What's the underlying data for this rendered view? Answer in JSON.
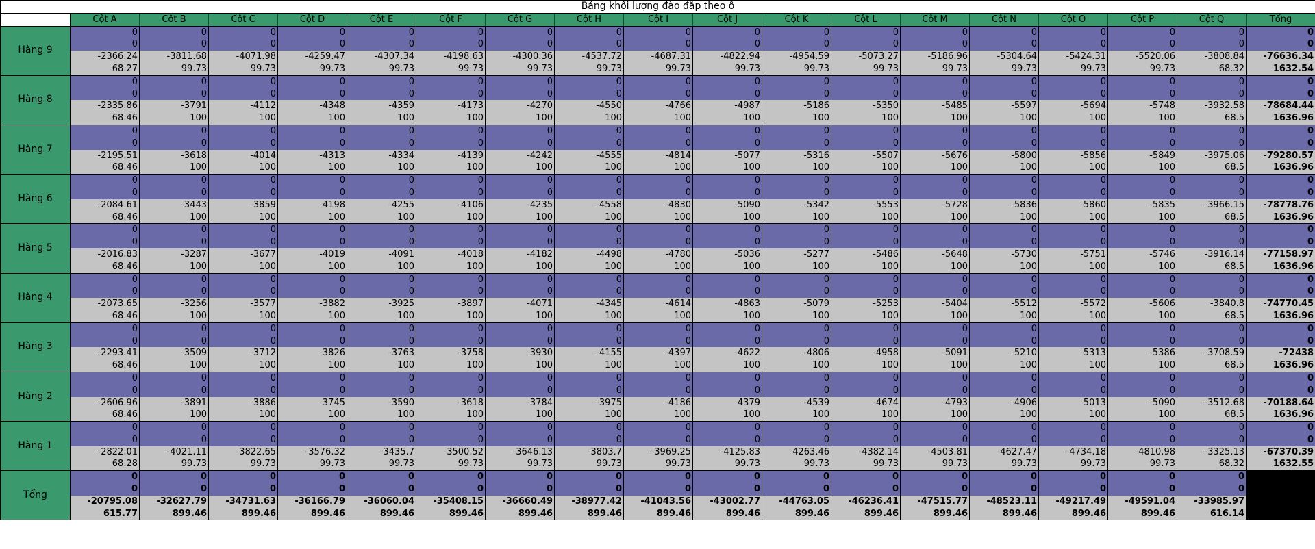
{
  "title": "Bảng khối lượng đào đắp theo ô",
  "columns": [
    "Cột A",
    "Cột B",
    "Cột C",
    "Cột D",
    "Cột E",
    "Cột F",
    "Cột G",
    "Cột H",
    "Cột I",
    "Cột J",
    "Cột K",
    "Cột L",
    "Cột M",
    "Cột N",
    "Cột O",
    "Cột P",
    "Cột Q"
  ],
  "total_label": "Tổng",
  "rows": [
    {
      "label": "Hàng 9",
      "fill1": [
        "0",
        "0",
        "0",
        "0",
        "0",
        "0",
        "0",
        "0",
        "0",
        "0",
        "0",
        "0",
        "0",
        "0",
        "0",
        "0",
        "0",
        "0"
      ],
      "fill2": [
        "0",
        "0",
        "0",
        "0",
        "0",
        "0",
        "0",
        "0",
        "0",
        "0",
        "0",
        "0",
        "0",
        "0",
        "0",
        "0",
        "0",
        "0"
      ],
      "cut": [
        "-2366.24",
        "-3811.68",
        "-4071.98",
        "-4259.47",
        "-4307.34",
        "-4198.63",
        "-4300.36",
        "-4537.72",
        "-4687.31",
        "-4822.94",
        "-4954.59",
        "-5073.27",
        "-5186.96",
        "-5304.64",
        "-5424.31",
        "-5520.06",
        "-3808.84",
        "-76636.34"
      ],
      "area": [
        "68.27",
        "99.73",
        "99.73",
        "99.73",
        "99.73",
        "99.73",
        "99.73",
        "99.73",
        "99.73",
        "99.73",
        "99.73",
        "99.73",
        "99.73",
        "99.73",
        "99.73",
        "99.73",
        "68.32",
        "1632.54"
      ]
    },
    {
      "label": "Hàng 8",
      "fill1": [
        "0",
        "0",
        "0",
        "0",
        "0",
        "0",
        "0",
        "0",
        "0",
        "0",
        "0",
        "0",
        "0",
        "0",
        "0",
        "0",
        "0",
        "0"
      ],
      "fill2": [
        "0",
        "0",
        "0",
        "0",
        "0",
        "0",
        "0",
        "0",
        "0",
        "0",
        "0",
        "0",
        "0",
        "0",
        "0",
        "0",
        "0",
        "0"
      ],
      "cut": [
        "-2335.86",
        "-3791",
        "-4112",
        "-4348",
        "-4359",
        "-4173",
        "-4270",
        "-4550",
        "-4766",
        "-4987",
        "-5186",
        "-5350",
        "-5485",
        "-5597",
        "-5694",
        "-5748",
        "-3932.58",
        "-78684.44"
      ],
      "area": [
        "68.46",
        "100",
        "100",
        "100",
        "100",
        "100",
        "100",
        "100",
        "100",
        "100",
        "100",
        "100",
        "100",
        "100",
        "100",
        "100",
        "68.5",
        "1636.96"
      ]
    },
    {
      "label": "Hàng 7",
      "fill1": [
        "0",
        "0",
        "0",
        "0",
        "0",
        "0",
        "0",
        "0",
        "0",
        "0",
        "0",
        "0",
        "0",
        "0",
        "0",
        "0",
        "0",
        "0"
      ],
      "fill2": [
        "0",
        "0",
        "0",
        "0",
        "0",
        "0",
        "0",
        "0",
        "0",
        "0",
        "0",
        "0",
        "0",
        "0",
        "0",
        "0",
        "0",
        "0"
      ],
      "cut": [
        "-2195.51",
        "-3618",
        "-4014",
        "-4313",
        "-4334",
        "-4139",
        "-4242",
        "-4555",
        "-4814",
        "-5077",
        "-5316",
        "-5507",
        "-5676",
        "-5800",
        "-5856",
        "-5849",
        "-3975.06",
        "-79280.57"
      ],
      "area": [
        "68.46",
        "100",
        "100",
        "100",
        "100",
        "100",
        "100",
        "100",
        "100",
        "100",
        "100",
        "100",
        "100",
        "100",
        "100",
        "100",
        "68.5",
        "1636.96"
      ]
    },
    {
      "label": "Hàng 6",
      "fill1": [
        "0",
        "0",
        "0",
        "0",
        "0",
        "0",
        "0",
        "0",
        "0",
        "0",
        "0",
        "0",
        "0",
        "0",
        "0",
        "0",
        "0",
        "0"
      ],
      "fill2": [
        "0",
        "0",
        "0",
        "0",
        "0",
        "0",
        "0",
        "0",
        "0",
        "0",
        "0",
        "0",
        "0",
        "0",
        "0",
        "0",
        "0",
        "0"
      ],
      "cut": [
        "-2084.61",
        "-3443",
        "-3859",
        "-4198",
        "-4255",
        "-4106",
        "-4235",
        "-4558",
        "-4830",
        "-5090",
        "-5342",
        "-5553",
        "-5728",
        "-5836",
        "-5860",
        "-5835",
        "-3966.15",
        "-78778.76"
      ],
      "area": [
        "68.46",
        "100",
        "100",
        "100",
        "100",
        "100",
        "100",
        "100",
        "100",
        "100",
        "100",
        "100",
        "100",
        "100",
        "100",
        "100",
        "68.5",
        "1636.96"
      ]
    },
    {
      "label": "Hàng 5",
      "fill1": [
        "0",
        "0",
        "0",
        "0",
        "0",
        "0",
        "0",
        "0",
        "0",
        "0",
        "0",
        "0",
        "0",
        "0",
        "0",
        "0",
        "0",
        "0"
      ],
      "fill2": [
        "0",
        "0",
        "0",
        "0",
        "0",
        "0",
        "0",
        "0",
        "0",
        "0",
        "0",
        "0",
        "0",
        "0",
        "0",
        "0",
        "0",
        "0"
      ],
      "cut": [
        "-2016.83",
        "-3287",
        "-3677",
        "-4019",
        "-4091",
        "-4018",
        "-4182",
        "-4498",
        "-4780",
        "-5036",
        "-5277",
        "-5486",
        "-5648",
        "-5730",
        "-5751",
        "-5746",
        "-3916.14",
        "-77158.97"
      ],
      "area": [
        "68.46",
        "100",
        "100",
        "100",
        "100",
        "100",
        "100",
        "100",
        "100",
        "100",
        "100",
        "100",
        "100",
        "100",
        "100",
        "100",
        "68.5",
        "1636.96"
      ]
    },
    {
      "label": "Hàng 4",
      "fill1": [
        "0",
        "0",
        "0",
        "0",
        "0",
        "0",
        "0",
        "0",
        "0",
        "0",
        "0",
        "0",
        "0",
        "0",
        "0",
        "0",
        "0",
        "0"
      ],
      "fill2": [
        "0",
        "0",
        "0",
        "0",
        "0",
        "0",
        "0",
        "0",
        "0",
        "0",
        "0",
        "0",
        "0",
        "0",
        "0",
        "0",
        "0",
        "0"
      ],
      "cut": [
        "-2073.65",
        "-3256",
        "-3577",
        "-3882",
        "-3925",
        "-3897",
        "-4071",
        "-4345",
        "-4614",
        "-4863",
        "-5079",
        "-5253",
        "-5404",
        "-5512",
        "-5572",
        "-5606",
        "-3840.8",
        "-74770.45"
      ],
      "area": [
        "68.46",
        "100",
        "100",
        "100",
        "100",
        "100",
        "100",
        "100",
        "100",
        "100",
        "100",
        "100",
        "100",
        "100",
        "100",
        "100",
        "68.5",
        "1636.96"
      ]
    },
    {
      "label": "Hàng 3",
      "fill1": [
        "0",
        "0",
        "0",
        "0",
        "0",
        "0",
        "0",
        "0",
        "0",
        "0",
        "0",
        "0",
        "0",
        "0",
        "0",
        "0",
        "0",
        "0"
      ],
      "fill2": [
        "0",
        "0",
        "0",
        "0",
        "0",
        "0",
        "0",
        "0",
        "0",
        "0",
        "0",
        "0",
        "0",
        "0",
        "0",
        "0",
        "0",
        "0"
      ],
      "cut": [
        "-2293.41",
        "-3509",
        "-3712",
        "-3826",
        "-3763",
        "-3758",
        "-3930",
        "-4155",
        "-4397",
        "-4622",
        "-4806",
        "-4958",
        "-5091",
        "-5210",
        "-5313",
        "-5386",
        "-3708.59",
        "-72438"
      ],
      "area": [
        "68.46",
        "100",
        "100",
        "100",
        "100",
        "100",
        "100",
        "100",
        "100",
        "100",
        "100",
        "100",
        "100",
        "100",
        "100",
        "100",
        "68.5",
        "1636.96"
      ]
    },
    {
      "label": "Hàng 2",
      "fill1": [
        "0",
        "0",
        "0",
        "0",
        "0",
        "0",
        "0",
        "0",
        "0",
        "0",
        "0",
        "0",
        "0",
        "0",
        "0",
        "0",
        "0",
        "0"
      ],
      "fill2": [
        "0",
        "0",
        "0",
        "0",
        "0",
        "0",
        "0",
        "0",
        "0",
        "0",
        "0",
        "0",
        "0",
        "0",
        "0",
        "0",
        "0",
        "0"
      ],
      "cut": [
        "-2606.96",
        "-3891",
        "-3886",
        "-3745",
        "-3590",
        "-3618",
        "-3784",
        "-3975",
        "-4186",
        "-4379",
        "-4539",
        "-4674",
        "-4793",
        "-4906",
        "-5013",
        "-5090",
        "-3512.68",
        "-70188.64"
      ],
      "area": [
        "68.46",
        "100",
        "100",
        "100",
        "100",
        "100",
        "100",
        "100",
        "100",
        "100",
        "100",
        "100",
        "100",
        "100",
        "100",
        "100",
        "68.5",
        "1636.96"
      ]
    },
    {
      "label": "Hàng 1",
      "fill1": [
        "0",
        "0",
        "0",
        "0",
        "0",
        "0",
        "0",
        "0",
        "0",
        "0",
        "0",
        "0",
        "0",
        "0",
        "0",
        "0",
        "0",
        "0"
      ],
      "fill2": [
        "0",
        "0",
        "0",
        "0",
        "0",
        "0",
        "0",
        "0",
        "0",
        "0",
        "0",
        "0",
        "0",
        "0",
        "0",
        "0",
        "0",
        "0"
      ],
      "cut": [
        "-2822.01",
        "-4021.11",
        "-3822.65",
        "-3576.32",
        "-3435.7",
        "-3500.52",
        "-3646.13",
        "-3803.7",
        "-3969.25",
        "-4125.83",
        "-4263.46",
        "-4382.14",
        "-4503.81",
        "-4627.47",
        "-4734.18",
        "-4810.98",
        "-3325.13",
        "-67370.39"
      ],
      "area": [
        "68.28",
        "99.73",
        "99.73",
        "99.73",
        "99.73",
        "99.73",
        "99.73",
        "99.73",
        "99.73",
        "99.73",
        "99.73",
        "99.73",
        "99.73",
        "99.73",
        "99.73",
        "99.73",
        "68.32",
        "1632.55"
      ]
    }
  ],
  "totals": {
    "label": "Tổng",
    "fill1": [
      "0",
      "0",
      "0",
      "0",
      "0",
      "0",
      "0",
      "0",
      "0",
      "0",
      "0",
      "0",
      "0",
      "0",
      "0",
      "0",
      "0"
    ],
    "fill2": [
      "0",
      "0",
      "0",
      "0",
      "0",
      "0",
      "0",
      "0",
      "0",
      "0",
      "0",
      "0",
      "0",
      "0",
      "0",
      "0",
      "0"
    ],
    "cut": [
      "-20795.08",
      "-32627.79",
      "-34731.63",
      "-36166.79",
      "-36060.04",
      "-35408.15",
      "-36660.49",
      "-38977.42",
      "-41043.56",
      "-43002.77",
      "-44763.05",
      "-46236.41",
      "-47515.77",
      "-48523.11",
      "-49217.49",
      "-49591.04",
      "-33985.97"
    ],
    "area": [
      "615.77",
      "899.46",
      "899.46",
      "899.46",
      "899.46",
      "899.46",
      "899.46",
      "899.46",
      "899.46",
      "899.46",
      "899.46",
      "899.46",
      "899.46",
      "899.46",
      "899.46",
      "899.46",
      "616.14"
    ]
  },
  "colors": {
    "header_green": "#3a9a6e",
    "fill_purple": "#6a6aa8",
    "cut_gray": "#c4c4c4",
    "corner_black": "#000000"
  }
}
